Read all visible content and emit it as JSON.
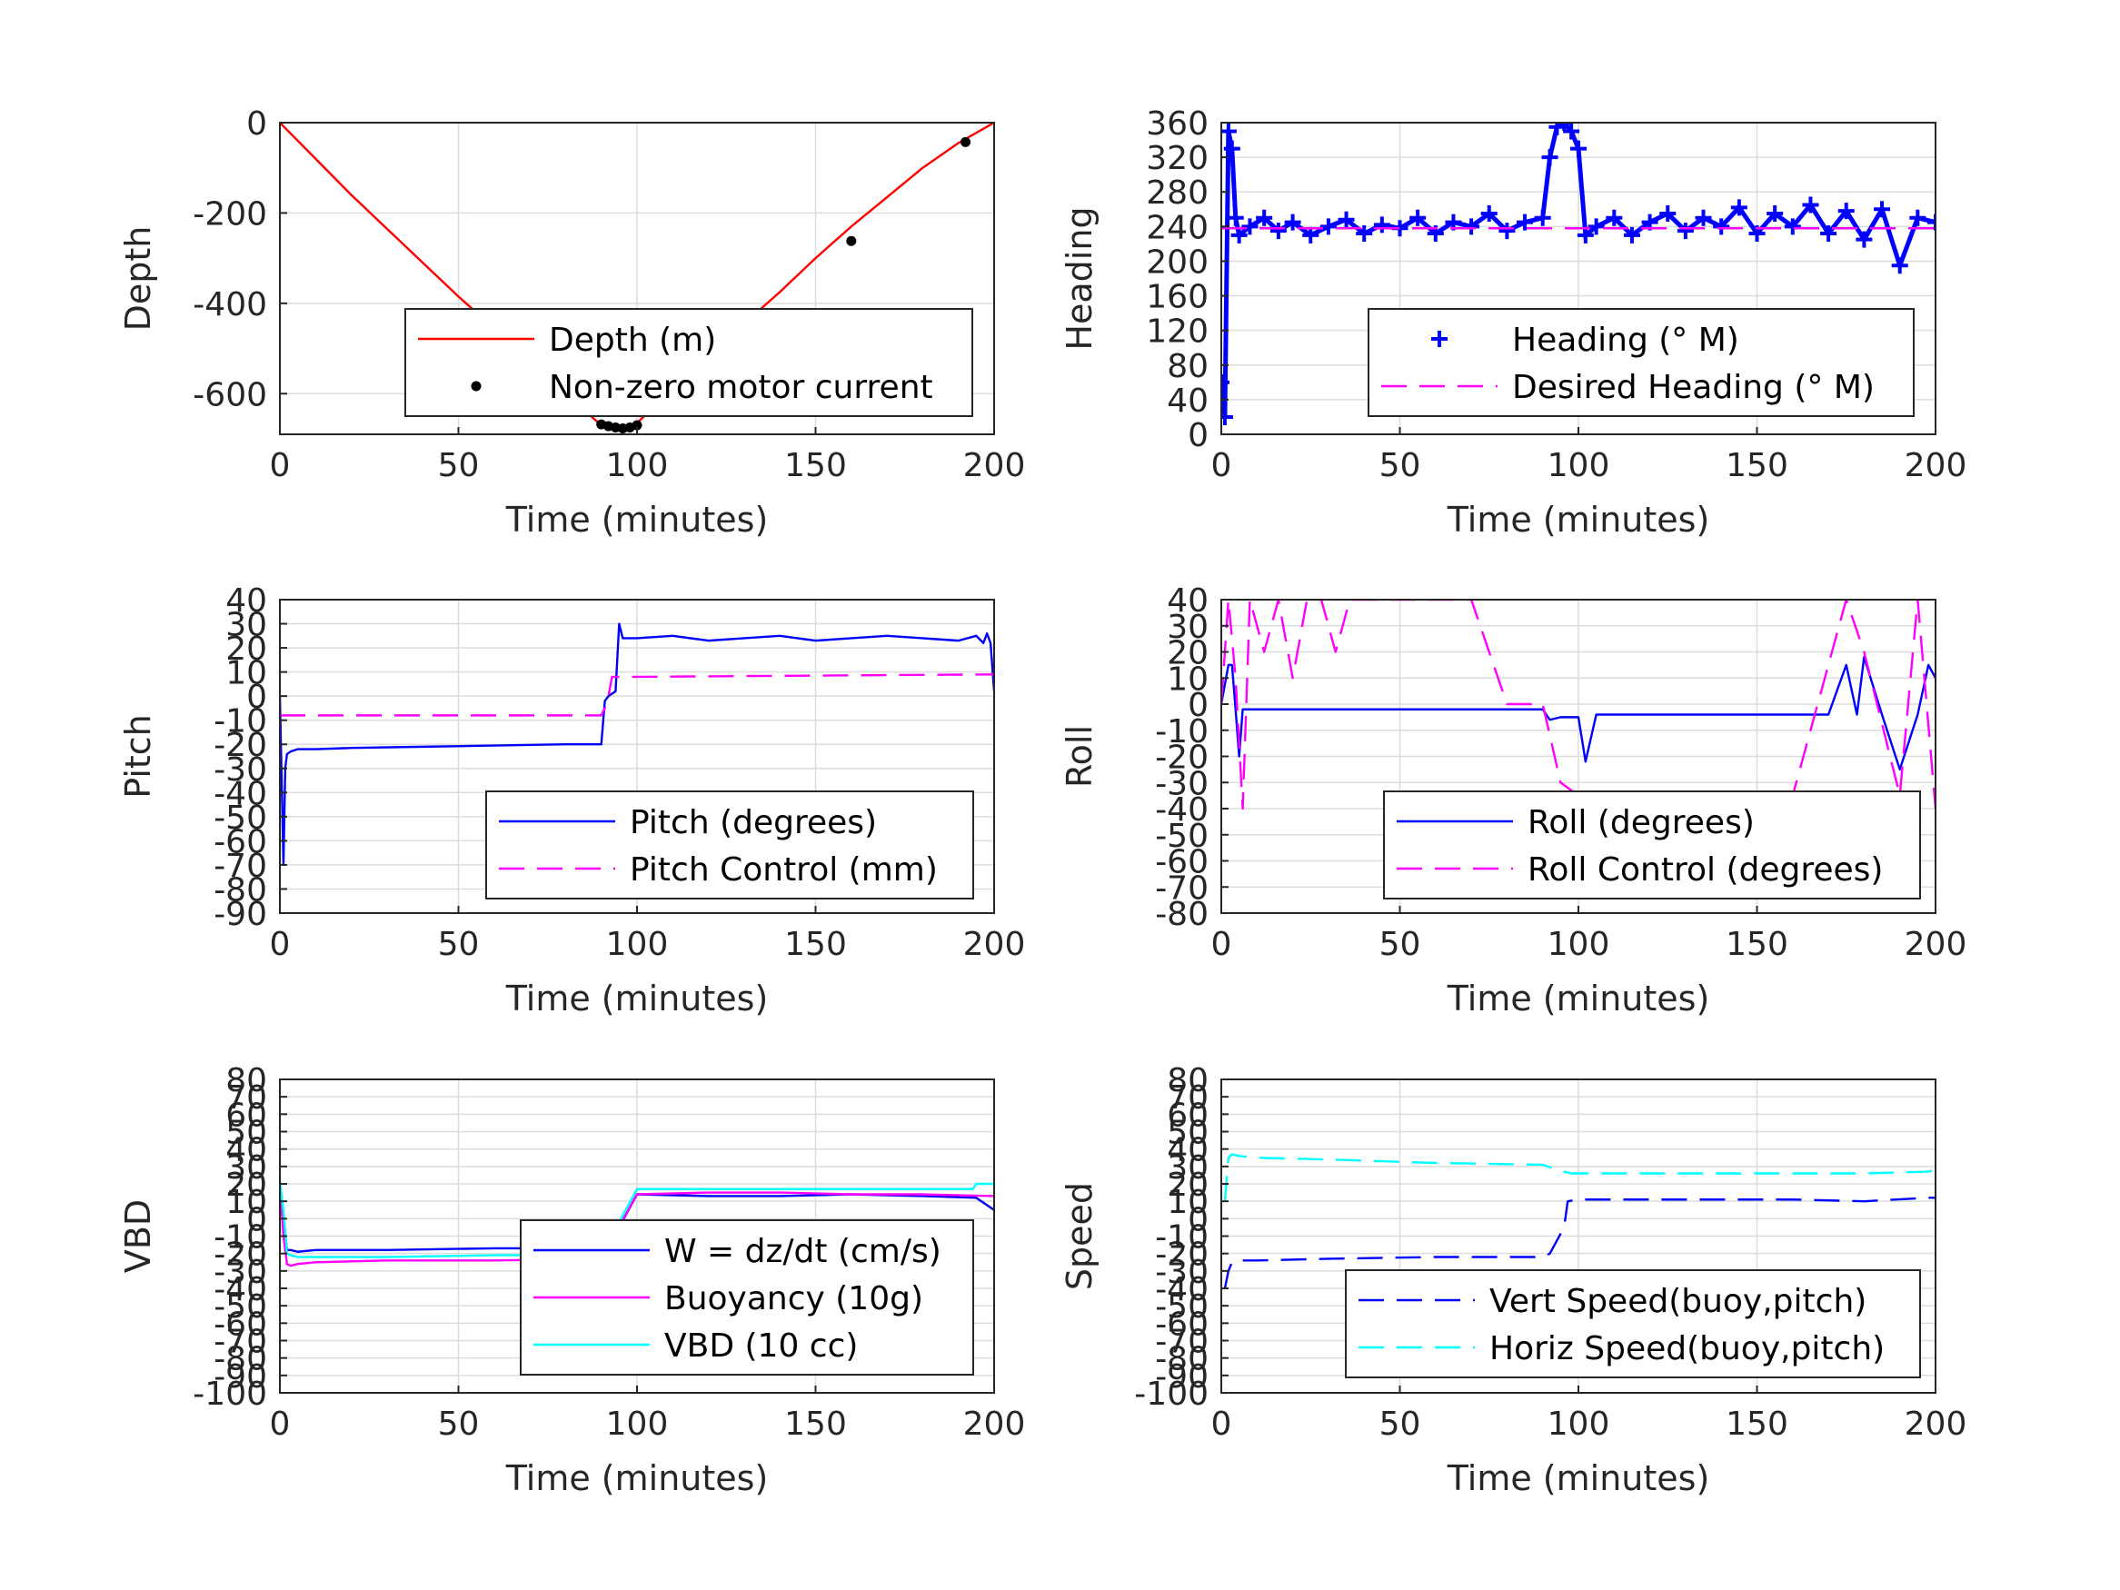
{
  "chart_data": [
    {
      "type": "line",
      "xlabel": "Time (minutes)",
      "ylabel": "Depth",
      "xlim": [
        0,
        200
      ],
      "ylim": [
        -690,
        0
      ],
      "xticks": [
        "0",
        "50",
        "100",
        "150",
        "200"
      ],
      "yticks": [
        0,
        -200,
        -400,
        -600
      ],
      "ytick_labels": [
        "0",
        "-200",
        "-400",
        "-600"
      ],
      "grid": true,
      "legend": "bottom-right",
      "series": [
        {
          "name": "Depth (m)",
          "style": "solid",
          "color": "#ff0000",
          "x": [
            0,
            10,
            20,
            30,
            40,
            50,
            60,
            70,
            80,
            90,
            95,
            100,
            110,
            120,
            130,
            140,
            150,
            160,
            170,
            180,
            190,
            200
          ],
          "y": [
            0,
            -80,
            -160,
            -235,
            -310,
            -385,
            -455,
            -530,
            -600,
            -670,
            -675,
            -665,
            -590,
            -515,
            -445,
            -375,
            -300,
            -230,
            -165,
            -100,
            -45,
            0
          ]
        },
        {
          "name": "Non-zero motor current",
          "style": "dots",
          "color": "#000000",
          "x": [
            90,
            92,
            94,
            96,
            98,
            100,
            128,
            160,
            192
          ],
          "y": [
            -668,
            -672,
            -675,
            -677,
            -675,
            -670,
            -475,
            -262,
            -43
          ]
        }
      ]
    },
    {
      "type": "line",
      "xlabel": "Time (minutes)",
      "ylabel": "Heading",
      "xlim": [
        0,
        200
      ],
      "ylim": [
        0,
        360
      ],
      "xticks": [
        "0",
        "50",
        "100",
        "150",
        "200"
      ],
      "yticks": [
        0,
        40,
        80,
        120,
        160,
        200,
        240,
        280,
        320,
        360
      ],
      "ytick_labels": [
        "0",
        "40",
        "80",
        "120",
        "160",
        "200",
        "240",
        "280",
        "320",
        "360"
      ],
      "grid": true,
      "legend": "bottom-right",
      "series": [
        {
          "name": "Heading (° M)",
          "style": "plus",
          "color": "#0000ff",
          "x": [
            0,
            1,
            2,
            3,
            4,
            5,
            8,
            12,
            16,
            20,
            25,
            30,
            35,
            40,
            45,
            50,
            55,
            60,
            65,
            70,
            75,
            80,
            85,
            90,
            92,
            94,
            96,
            98,
            100,
            102,
            105,
            110,
            115,
            120,
            125,
            130,
            135,
            140,
            145,
            150,
            155,
            160,
            165,
            170,
            175,
            180,
            185,
            190,
            195,
            200
          ],
          "y": [
            60,
            20,
            350,
            330,
            250,
            230,
            240,
            250,
            235,
            245,
            230,
            240,
            248,
            232,
            242,
            238,
            250,
            232,
            245,
            240,
            255,
            235,
            245,
            250,
            320,
            355,
            360,
            350,
            330,
            230,
            240,
            250,
            230,
            245,
            255,
            235,
            250,
            240,
            262,
            232,
            255,
            240,
            265,
            232,
            258,
            225,
            260,
            195,
            250,
            245
          ]
        },
        {
          "name": "Desired Heading (° M)",
          "style": "dashed",
          "color": "#ff00ff",
          "x": [
            0,
            200
          ],
          "y": [
            238,
            238
          ]
        }
      ]
    },
    {
      "type": "line",
      "xlabel": "Time (minutes)",
      "ylabel": "Pitch",
      "xlim": [
        0,
        200
      ],
      "ylim": [
        -90,
        40
      ],
      "xticks": [
        "0",
        "50",
        "100",
        "150",
        "200"
      ],
      "yticks": [
        40,
        30,
        20,
        10,
        0,
        -10,
        -20,
        -30,
        -40,
        -50,
        -60,
        -70,
        -80,
        -90
      ],
      "ytick_labels": [
        "40",
        "30",
        "20",
        "10",
        "0",
        "-10",
        "-20",
        "-30",
        "-40",
        "-50",
        "-60",
        "-70",
        "-80",
        "-90"
      ],
      "grid": true,
      "legend": "bottom-right",
      "series": [
        {
          "name": "Pitch (degrees)",
          "style": "solid",
          "color": "#0000ff",
          "x": [
            0,
            1,
            1.5,
            2,
            3,
            5,
            10,
            20,
            40,
            60,
            80,
            89,
            90,
            91,
            92,
            93,
            94,
            95,
            96,
            100,
            110,
            120,
            130,
            140,
            150,
            160,
            170,
            180,
            190,
            195,
            197,
            198,
            199,
            200
          ],
          "y": [
            0,
            -70,
            -30,
            -24,
            -23,
            -22,
            -22,
            -21.5,
            -21,
            -20.5,
            -20,
            -20,
            -20,
            -2,
            0,
            1,
            2,
            30,
            24,
            24,
            25,
            23,
            24,
            25,
            23,
            24,
            25,
            24,
            23,
            25,
            22,
            26,
            22,
            2
          ]
        },
        {
          "name": "Pitch Control (mm)",
          "style": "dashed",
          "color": "#ff00ff",
          "x": [
            0,
            88,
            90,
            91,
            92,
            93,
            100,
            200
          ],
          "y": [
            -8,
            -8,
            -8,
            -5,
            0,
            8,
            8,
            9
          ]
        }
      ]
    },
    {
      "type": "line",
      "xlabel": "Time (minutes)",
      "ylabel": "Roll",
      "xlim": [
        0,
        200
      ],
      "ylim": [
        -80,
        40
      ],
      "xticks": [
        "0",
        "50",
        "100",
        "150",
        "200"
      ],
      "yticks": [
        40,
        30,
        20,
        10,
        0,
        -10,
        -20,
        -30,
        -40,
        -50,
        -60,
        -70,
        -80
      ],
      "ytick_labels": [
        "40",
        "30",
        "20",
        "10",
        "0",
        "-10",
        "-20",
        "-30",
        "-40",
        "-50",
        "-60",
        "-70",
        "-80"
      ],
      "grid": true,
      "legend": "bottom-right",
      "series": [
        {
          "name": "Roll (degrees)",
          "style": "solid",
          "color": "#0000ff",
          "x": [
            0,
            2,
            3,
            4,
            5,
            6,
            7,
            8,
            20,
            30,
            40,
            50,
            60,
            70,
            80,
            90,
            92,
            95,
            100,
            102,
            105,
            110,
            120,
            130,
            140,
            150,
            160,
            170,
            175,
            178,
            180,
            185,
            190,
            195,
            198,
            200
          ],
          "y": [
            0,
            15,
            15,
            -2,
            -20,
            -2,
            -2,
            -2,
            -2,
            -2,
            -2,
            -2,
            -2,
            -2,
            -2,
            -2,
            -6,
            -5,
            -5,
            -22,
            -4,
            -4,
            -4,
            -4,
            -4,
            -4,
            -4,
            -4,
            15,
            -4,
            18,
            -4,
            -25,
            -4,
            15,
            10
          ]
        },
        {
          "name": "Roll Control (degrees)",
          "style": "dashed",
          "color": "#ff00ff",
          "x": [
            0,
            2,
            4,
            6,
            8,
            12,
            16,
            20,
            24,
            28,
            32,
            36,
            40,
            50,
            60,
            70,
            80,
            90,
            95,
            100,
            120,
            140,
            160,
            175,
            180,
            190,
            195,
            200
          ],
          "y": [
            0,
            40,
            10,
            -40,
            40,
            20,
            40,
            10,
            40,
            40,
            20,
            40,
            40,
            40,
            40,
            40,
            0,
            0,
            -30,
            -35,
            -35,
            -35,
            -35,
            40,
            20,
            -35,
            40,
            -40
          ]
        }
      ]
    },
    {
      "type": "line",
      "xlabel": "Time (minutes)",
      "ylabel": "VBD",
      "xlim": [
        0,
        200
      ],
      "ylim": [
        -100,
        80
      ],
      "xticks": [
        "0",
        "50",
        "100",
        "150",
        "200"
      ],
      "yticks": [
        80,
        70,
        60,
        50,
        40,
        30,
        20,
        10,
        0,
        -10,
        -20,
        -30,
        -40,
        -50,
        -60,
        -70,
        -80,
        -90,
        -100
      ],
      "ytick_labels": [
        "80",
        "70",
        "60",
        "50",
        "40",
        "30",
        "20",
        "10",
        "0",
        "-10",
        "-20",
        "-30",
        "-40",
        "-50",
        "-60",
        "-70",
        "-80",
        "-90",
        "-100"
      ],
      "grid": true,
      "legend": "bottom-right",
      "series": [
        {
          "name": "W = dz/dt (cm/s)",
          "style": "solid",
          "color": "#0000ff",
          "x": [
            0,
            1,
            2,
            3,
            5,
            10,
            30,
            60,
            90,
            92,
            95,
            100,
            120,
            140,
            160,
            180,
            195,
            200
          ],
          "y": [
            20,
            0,
            -18,
            -18,
            -19,
            -18,
            -18,
            -17,
            -17,
            -12,
            -5,
            14,
            13,
            13,
            14,
            13,
            12,
            5
          ]
        },
        {
          "name": "Buoyancy (10g)",
          "style": "solid",
          "color": "#ff00ff",
          "x": [
            0,
            1,
            2,
            3,
            5,
            10,
            30,
            60,
            90,
            100,
            120,
            140,
            160,
            180,
            200
          ],
          "y": [
            20,
            -10,
            -26,
            -27,
            -26,
            -25,
            -24,
            -24,
            -23,
            14,
            15,
            15,
            14,
            14,
            13
          ]
        },
        {
          "name": "VBD (10 cc)",
          "style": "solid",
          "color": "#00ffff",
          "x": [
            0,
            1,
            2,
            3,
            5,
            10,
            30,
            60,
            90,
            100,
            120,
            140,
            160,
            180,
            194,
            195,
            200
          ],
          "y": [
            22,
            5,
            -20,
            -21,
            -22,
            -22,
            -22,
            -21,
            -21,
            17,
            17,
            17,
            17,
            17,
            17,
            20,
            20
          ]
        }
      ]
    },
    {
      "type": "line",
      "xlabel": "Time (minutes)",
      "ylabel": "Speed",
      "xlim": [
        0,
        200
      ],
      "ylim": [
        -100,
        80
      ],
      "xticks": [
        "0",
        "50",
        "100",
        "150",
        "200"
      ],
      "yticks": [
        80,
        70,
        60,
        50,
        40,
        30,
        20,
        10,
        0,
        -10,
        -20,
        -30,
        -40,
        -50,
        -60,
        -70,
        -80,
        -90,
        -100
      ],
      "ytick_labels": [
        "80",
        "70",
        "60",
        "50",
        "40",
        "30",
        "20",
        "10",
        "0",
        "-10",
        "-20",
        "-30",
        "-40",
        "-50",
        "-60",
        "-70",
        "-80",
        "-90",
        "-100"
      ],
      "grid": true,
      "legend": "bottom-right",
      "series": [
        {
          "name": "Vert Speed(buoy,pitch)",
          "style": "dashed",
          "color": "#0000ff",
          "x": [
            1,
            2,
            3,
            5,
            10,
            30,
            60,
            90,
            92,
            96,
            97,
            100,
            120,
            140,
            160,
            180,
            198,
            200
          ],
          "y": [
            -40,
            -30,
            -25,
            -24,
            -24,
            -23,
            -22,
            -22,
            -20,
            -5,
            10,
            11,
            11,
            11,
            11,
            10,
            12,
            12
          ]
        },
        {
          "name": "Horiz Speed(buoy,pitch)",
          "style": "dashed",
          "color": "#00ffff",
          "x": [
            1,
            2,
            3,
            5,
            10,
            30,
            60,
            90,
            94,
            98,
            100,
            120,
            140,
            160,
            180,
            198,
            200
          ],
          "y": [
            10,
            35,
            37,
            36,
            35,
            34,
            32,
            31,
            28,
            26,
            26,
            26,
            26,
            26,
            26,
            27,
            28
          ]
        }
      ]
    }
  ]
}
